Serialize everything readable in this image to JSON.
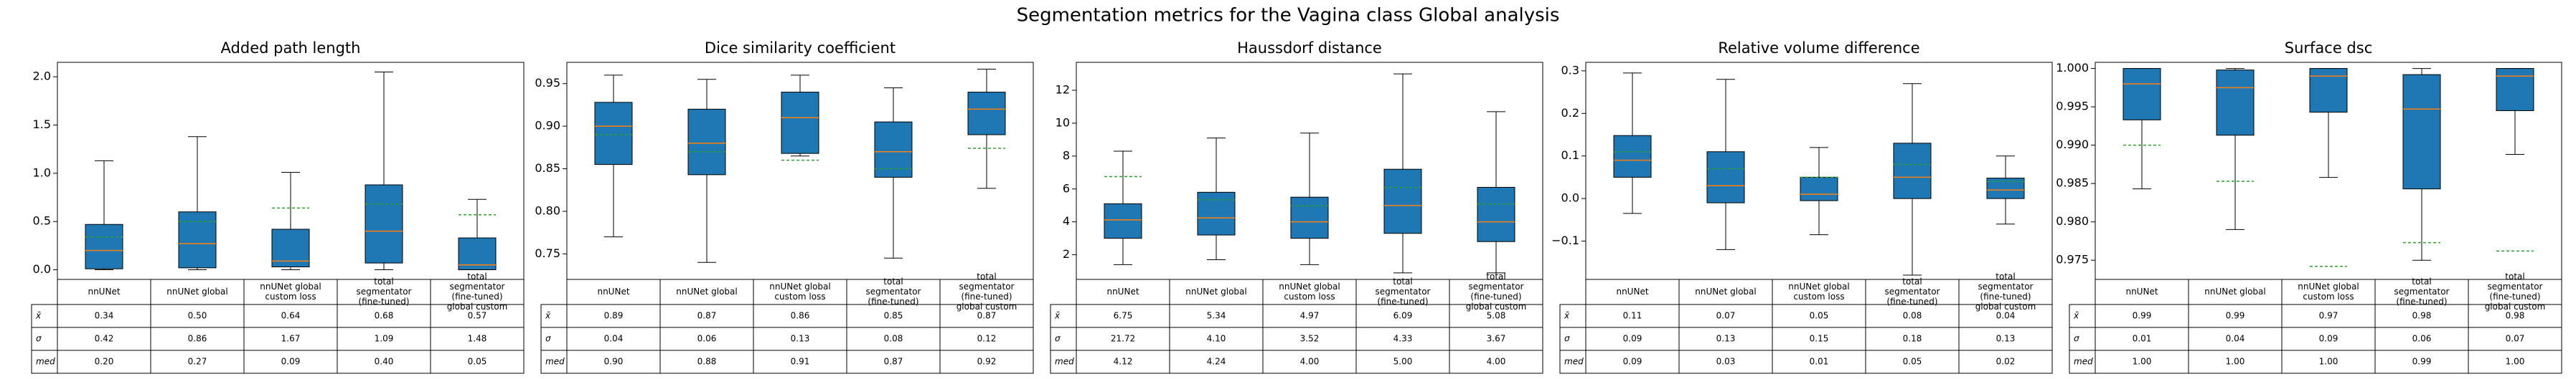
{
  "title": "Segmentation metrics for the Vagina class Global analysis",
  "chart_data": [
    {
      "type": "box",
      "title": "Added path length",
      "categories": [
        [
          "nnUNet"
        ],
        [
          "nnUNet global"
        ],
        [
          "nnUNet global",
          "custom loss"
        ],
        [
          "total",
          "segmentator",
          "(fine-tuned)"
        ],
        [
          "total",
          "segmentator",
          "(fine-tuned)",
          "global custom"
        ]
      ],
      "whislo": [
        0,
        0,
        0,
        0,
        0
      ],
      "q1": [
        0.01,
        0.02,
        0.03,
        0.07,
        0.0
      ],
      "median": [
        0.2,
        0.27,
        0.09,
        0.4,
        0.05
      ],
      "q3": [
        0.47,
        0.6,
        0.42,
        0.88,
        0.33
      ],
      "whishi": [
        1.13,
        1.38,
        1.01,
        2.05,
        0.73
      ],
      "mean": [
        0.34,
        0.5,
        0.64,
        0.68,
        0.57
      ],
      "color": "#1f77b4",
      "median_color": "#ff7f0e",
      "mean_color": "#2ca02c",
      "ylim": [
        -0.1,
        2.15
      ],
      "yticks": [
        {
          "value": 0,
          "label": "0.0"
        },
        {
          "value": 0.5,
          "label": "0.5"
        },
        {
          "value": 1,
          "label": "1.0"
        },
        {
          "value": 1.5,
          "label": "1.5"
        },
        {
          "value": 2,
          "label": "2.0"
        }
      ],
      "table": {
        "row_labels": [
          "x̄",
          "σ",
          "med"
        ],
        "rows": [
          [
            "0.34",
            "0.50",
            "0.64",
            "0.68",
            "0.57"
          ],
          [
            "0.42",
            "0.86",
            "1.67",
            "1.09",
            "1.48"
          ],
          [
            "0.20",
            "0.27",
            "0.09",
            "0.40",
            "0.05"
          ]
        ]
      }
    },
    {
      "type": "box",
      "title": "Dice similarity coefficient",
      "categories": [
        [
          "nnUNet"
        ],
        [
          "nnUNet global"
        ],
        [
          "nnUNet global",
          "custom loss"
        ],
        [
          "total",
          "segmentator",
          "(fine-tuned)"
        ],
        [
          "total",
          "segmentator",
          "(fine-tuned)",
          "global custom"
        ]
      ],
      "whislo": [
        0.77,
        0.74,
        0.865,
        0.745,
        0.827
      ],
      "q1": [
        0.855,
        0.843,
        0.868,
        0.84,
        0.89
      ],
      "median": [
        0.9,
        0.88,
        0.91,
        0.87,
        0.92
      ],
      "q3": [
        0.928,
        0.92,
        0.94,
        0.905,
        0.94
      ],
      "whishi": [
        0.96,
        0.955,
        0.96,
        0.945,
        0.967
      ],
      "mean": [
        0.89,
        0.87,
        0.86,
        0.85,
        0.874
      ],
      "color": "#1f77b4",
      "median_color": "#ff7f0e",
      "mean_color": "#2ca02c",
      "ylim": [
        0.72,
        0.975
      ],
      "yticks": [
        {
          "value": 0.75,
          "label": "0.75"
        },
        {
          "value": 0.8,
          "label": "0.80"
        },
        {
          "value": 0.85,
          "label": "0.85"
        },
        {
          "value": 0.9,
          "label": "0.90"
        },
        {
          "value": 0.95,
          "label": "0.95"
        }
      ],
      "table": {
        "row_labels": [
          "x̄",
          "σ",
          "med"
        ],
        "rows": [
          [
            "0.89",
            "0.87",
            "0.86",
            "0.85",
            "0.87"
          ],
          [
            "0.04",
            "0.06",
            "0.13",
            "0.08",
            "0.12"
          ],
          [
            "0.90",
            "0.88",
            "0.91",
            "0.87",
            "0.92"
          ]
        ]
      }
    },
    {
      "type": "box",
      "title": "Haussdorf distance",
      "categories": [
        [
          "nnUNet"
        ],
        [
          "nnUNet global"
        ],
        [
          "nnUNet global",
          "custom loss"
        ],
        [
          "total",
          "segmentator",
          "(fine-tuned)"
        ],
        [
          "total",
          "segmentator",
          "(fine-tuned)",
          "global custom"
        ]
      ],
      "whislo": [
        1.4,
        1.7,
        1.4,
        0.9,
        0.9
      ],
      "q1": [
        3.0,
        3.2,
        3.0,
        3.3,
        2.8
      ],
      "median": [
        4.12,
        4.24,
        4.0,
        5.0,
        4.0
      ],
      "q3": [
        5.1,
        5.8,
        5.5,
        7.2,
        6.1
      ],
      "whishi": [
        8.3,
        9.1,
        9.4,
        13.0,
        10.7
      ],
      "mean": [
        6.75,
        5.34,
        4.97,
        6.09,
        5.08
      ],
      "color": "#1f77b4",
      "median_color": "#ff7f0e",
      "mean_color": "#2ca02c",
      "ylim": [
        0.5,
        13.7
      ],
      "yticks": [
        2,
        4,
        6,
        8,
        10,
        12
      ],
      "table": {
        "row_labels": [
          "x̄",
          "σ",
          "med"
        ],
        "rows": [
          [
            "6.75",
            "5.34",
            "4.97",
            "6.09",
            "5.08"
          ],
          [
            "21.72",
            "4.10",
            "3.52",
            "4.33",
            "3.67"
          ],
          [
            "4.12",
            "4.24",
            "4.00",
            "5.00",
            "4.00"
          ]
        ]
      }
    },
    {
      "type": "box",
      "title": "Relative volume difference",
      "categories": [
        [
          "nnUNet"
        ],
        [
          "nnUNet global"
        ],
        [
          "nnUNet global",
          "custom loss"
        ],
        [
          "total",
          "segmentator",
          "(fine-tuned)"
        ],
        [
          "total",
          "segmentator",
          "(fine-tuned)",
          "global custom"
        ]
      ],
      "whislo": [
        -0.035,
        -0.12,
        -0.085,
        -0.18,
        -0.06
      ],
      "q1": [
        0.05,
        -0.01,
        -0.005,
        0.0,
        0.0
      ],
      "median": [
        0.09,
        0.03,
        0.01,
        0.05,
        0.02
      ],
      "q3": [
        0.148,
        0.11,
        0.05,
        0.13,
        0.048
      ],
      "whishi": [
        0.295,
        0.28,
        0.12,
        0.27,
        0.1
      ],
      "mean": [
        0.11,
        0.07,
        0.05,
        0.08,
        0.04
      ],
      "color": "#1f77b4",
      "median_color": "#ff7f0e",
      "mean_color": "#2ca02c",
      "ylim": [
        -0.19,
        0.32
      ],
      "yticks": [
        {
          "value": -0.1,
          "label": "−0.1"
        },
        {
          "value": 0,
          "label": "0.0"
        },
        {
          "value": 0.1,
          "label": "0.1"
        },
        {
          "value": 0.2,
          "label": "0.2"
        },
        {
          "value": 0.3,
          "label": "0.3"
        }
      ],
      "table": {
        "row_labels": [
          "x̄",
          "σ",
          "med"
        ],
        "rows": [
          [
            "0.11",
            "0.07",
            "0.05",
            "0.08",
            "0.04"
          ],
          [
            "0.09",
            "0.13",
            "0.15",
            "0.18",
            "0.13"
          ],
          [
            "0.09",
            "0.03",
            "0.01",
            "0.05",
            "0.02"
          ]
        ]
      }
    },
    {
      "type": "box",
      "title": "Surface dsc",
      "categories": [
        [
          "nnUNet"
        ],
        [
          "nnUNet global"
        ],
        [
          "nnUNet global",
          "custom loss"
        ],
        [
          "total",
          "segmentator",
          "(fine-tuned)"
        ],
        [
          "total",
          "segmentator",
          "(fine-tuned)",
          "global custom"
        ]
      ],
      "whislo": [
        0.9843,
        0.979,
        0.9858,
        0.975,
        0.9888
      ],
      "q1": [
        0.9933,
        0.9913,
        0.9943,
        0.9843,
        0.9945
      ],
      "median": [
        0.998,
        0.9975,
        0.999,
        0.9947,
        0.999
      ],
      "q3": [
        1.0,
        0.9998,
        1.0,
        0.9992,
        1.0
      ],
      "whishi": [
        1.0,
        1.0,
        1.0,
        1.0,
        1.0
      ],
      "mean": [
        0.99,
        0.9853,
        0.9742,
        0.9773,
        0.9762
      ],
      "color": "#1f77b4",
      "median_color": "#ff7f0e",
      "mean_color": "#2ca02c",
      "ylim": [
        0.9725,
        1.0008
      ],
      "yticks": [
        {
          "value": 0.975,
          "label": "0.975"
        },
        {
          "value": 0.98,
          "label": "0.980"
        },
        {
          "value": 0.985,
          "label": "0.985"
        },
        {
          "value": 0.99,
          "label": "0.990"
        },
        {
          "value": 0.995,
          "label": "0.995"
        },
        {
          "value": 1,
          "label": "1.000"
        }
      ],
      "table": {
        "row_labels": [
          "x̄",
          "σ",
          "med"
        ],
        "rows": [
          [
            "0.99",
            "0.99",
            "0.97",
            "0.98",
            "0.98"
          ],
          [
            "0.01",
            "0.04",
            "0.09",
            "0.06",
            "0.07"
          ],
          [
            "1.00",
            "1.00",
            "1.00",
            "0.99",
            "1.00"
          ]
        ]
      }
    }
  ]
}
